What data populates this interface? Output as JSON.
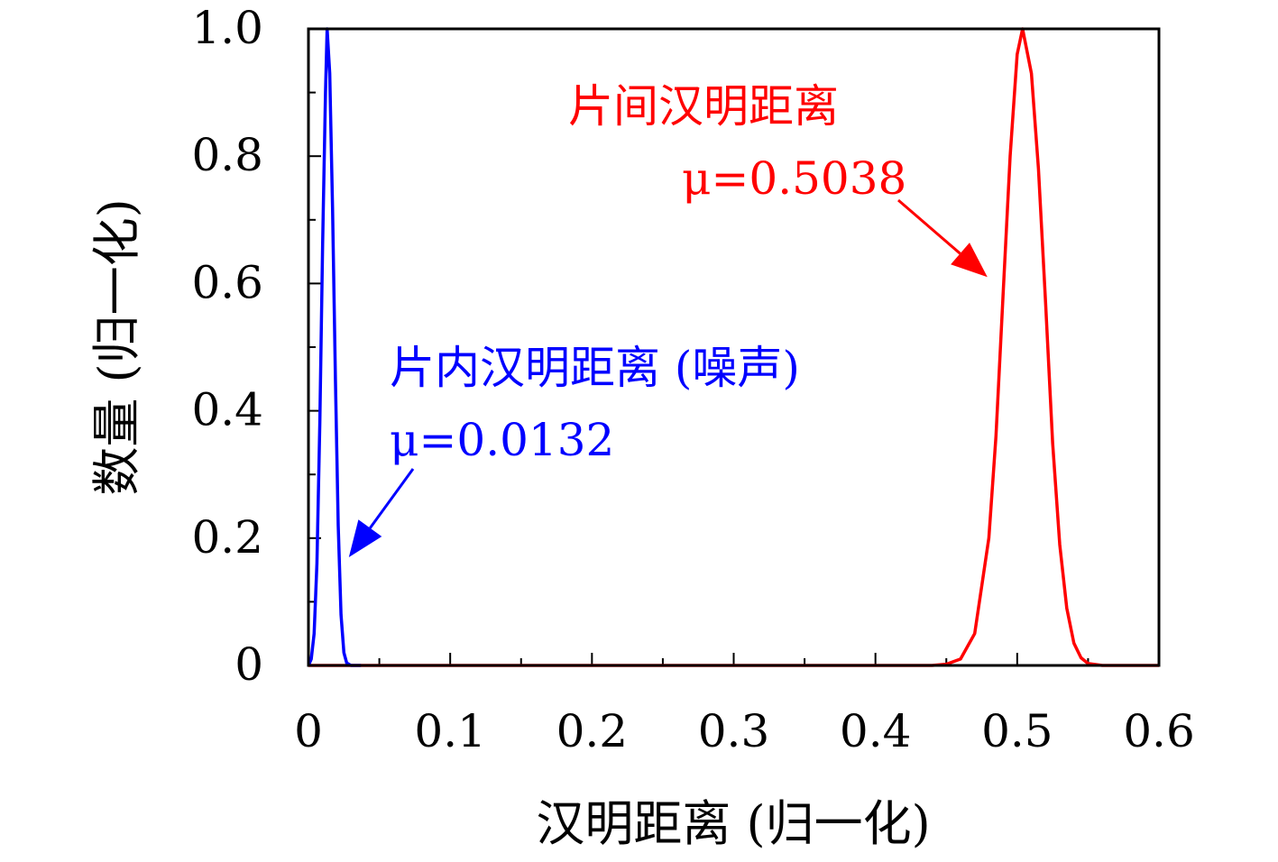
{
  "chart_data": {
    "type": "line",
    "title": "",
    "xlabel": "汉明距离 (归一化)",
    "ylabel": "数量 (归一化)",
    "xlim": [
      0,
      0.6
    ],
    "ylim": [
      0,
      1.0
    ],
    "x_ticks": [
      "0",
      "0.1",
      "0.2",
      "0.3",
      "0.4",
      "0.5",
      "0.6"
    ],
    "y_ticks": [
      "0",
      "0.2",
      "0.4",
      "0.6",
      "0.8",
      "1.0"
    ],
    "x_tick_values": [
      0,
      0.1,
      0.2,
      0.3,
      0.4,
      0.5,
      0.6
    ],
    "y_tick_values": [
      0,
      0.2,
      0.4,
      0.6,
      0.8,
      1.0
    ],
    "grid": false,
    "legend": "none",
    "series": [
      {
        "color": "#0000ff",
        "points": [
          [
            0.0,
            0.0
          ],
          [
            0.002,
            0.01
          ],
          [
            0.004,
            0.05
          ],
          [
            0.006,
            0.16
          ],
          [
            0.008,
            0.38
          ],
          [
            0.01,
            0.66
          ],
          [
            0.012,
            0.9
          ],
          [
            0.0132,
            1.0
          ],
          [
            0.015,
            0.93
          ],
          [
            0.017,
            0.72
          ],
          [
            0.019,
            0.45
          ],
          [
            0.021,
            0.22
          ],
          [
            0.023,
            0.08
          ],
          [
            0.025,
            0.02
          ],
          [
            0.027,
            0.004
          ],
          [
            0.03,
            0.0
          ],
          [
            0.037,
            0.0
          ]
        ]
      },
      {
        "color": "#ff0000",
        "points": [
          [
            0.0,
            0.0
          ],
          [
            0.44,
            0.0
          ],
          [
            0.45,
            0.002
          ],
          [
            0.46,
            0.01
          ],
          [
            0.47,
            0.05
          ],
          [
            0.48,
            0.2
          ],
          [
            0.485,
            0.36
          ],
          [
            0.49,
            0.58
          ],
          [
            0.495,
            0.8
          ],
          [
            0.5,
            0.96
          ],
          [
            0.5038,
            1.0
          ],
          [
            0.51,
            0.93
          ],
          [
            0.515,
            0.78
          ],
          [
            0.52,
            0.57
          ],
          [
            0.525,
            0.35
          ],
          [
            0.53,
            0.19
          ],
          [
            0.535,
            0.09
          ],
          [
            0.54,
            0.035
          ],
          [
            0.545,
            0.012
          ],
          [
            0.55,
            0.003
          ],
          [
            0.56,
            0.0
          ],
          [
            0.6,
            0.0
          ]
        ]
      }
    ],
    "annotations": [
      {
        "id": "intra",
        "color": "#0000ff",
        "title": "片内汉明距离 (噪声)",
        "mu": "μ=0.0132",
        "arrow_to": [
          0.0285,
          0.17
        ]
      },
      {
        "id": "inter",
        "color": "#ff0000",
        "title": "片间汉明距离",
        "mu": "μ=0.5038",
        "arrow_to": [
          0.479,
          0.61
        ]
      }
    ]
  }
}
